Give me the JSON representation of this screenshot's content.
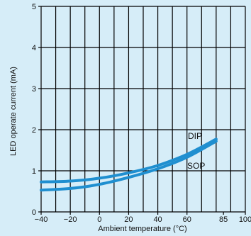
{
  "chart_data": {
    "type": "line",
    "xlabel": "Ambient temperature (°C)",
    "ylabel": "LED operate current (mA)",
    "xlim": [
      -40,
      100
    ],
    "ylim": [
      0,
      5
    ],
    "x_ticks": [
      "−40",
      "−20",
      "0",
      "20",
      "40",
      "60",
      "85",
      "100"
    ],
    "x_tick_values": [
      -40,
      -20,
      0,
      20,
      40,
      60,
      85,
      100
    ],
    "y_ticks": [
      "0",
      "1",
      "2",
      "3",
      "4",
      "5"
    ],
    "y_tick_values": [
      0,
      1,
      2,
      3,
      4,
      5
    ],
    "grid": true,
    "colors": {
      "series": "#1f8fd0",
      "background": "#d6edf8",
      "grid": "#000000"
    },
    "series": [
      {
        "name": "DIP",
        "x": [
          -40,
          -20,
          0,
          20,
          40,
          60,
          80
        ],
        "values": [
          0.73,
          0.75,
          0.82,
          0.95,
          1.13,
          1.4,
          1.77
        ]
      },
      {
        "name": "SOP",
        "x": [
          -40,
          -20,
          0,
          20,
          40,
          60,
          80
        ],
        "values": [
          0.53,
          0.57,
          0.67,
          0.84,
          1.05,
          1.33,
          1.72
        ]
      }
    ]
  }
}
